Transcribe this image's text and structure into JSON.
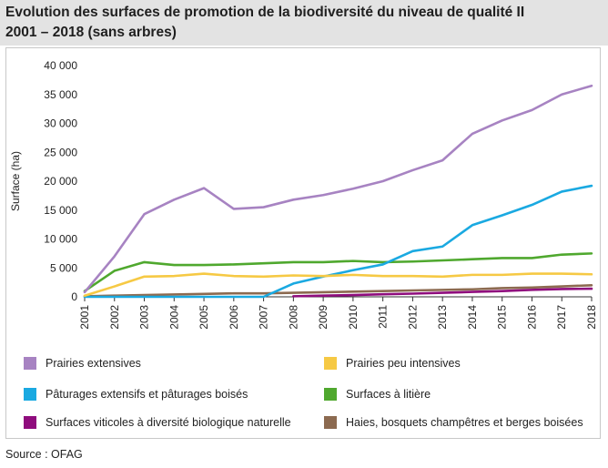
{
  "header": {
    "title_line1": "Evolution des surfaces de promotion de la biodiversité du niveau de qualité II",
    "title_line2": "2001 – 2018 (sans arbres)"
  },
  "source": "Source : OFAG",
  "chart_data": {
    "type": "line",
    "title": "Evolution des surfaces de promotion de la biodiversité du niveau de qualité II",
    "subtitle": "2001 – 2018 (sans arbres)",
    "xlabel": "",
    "ylabel": "Surface (ha)",
    "ylim": [
      0,
      40000
    ],
    "yticks": [
      0,
      5000,
      10000,
      15000,
      20000,
      25000,
      30000,
      35000,
      40000
    ],
    "ytick_labels": [
      "0",
      "5 000",
      "10 000",
      "15 000",
      "20 000",
      "25 000",
      "30 000",
      "35 000",
      "40 000"
    ],
    "x": [
      "2001",
      "2002",
      "2003",
      "2004",
      "2005",
      "2006",
      "2007",
      "2008",
      "2009",
      "2010",
      "2011",
      "2012",
      "2013",
      "2014",
      "2015",
      "2016",
      "2017",
      "2018"
    ],
    "grid": false,
    "legend_position": "bottom",
    "series": [
      {
        "name": "Prairies extensives",
        "color": "#a783c2",
        "values": [
          800,
          7000,
          14300,
          16800,
          18800,
          15200,
          15500,
          16800,
          17600,
          18700,
          20000,
          21900,
          23600,
          28200,
          30500,
          32300,
          35000,
          36500
        ]
      },
      {
        "name": "Prairies peu intensives",
        "color": "#f6c944",
        "values": [
          200,
          1800,
          3500,
          3600,
          4000,
          3600,
          3500,
          3700,
          3600,
          3800,
          3600,
          3600,
          3500,
          3800,
          3800,
          4000,
          4000,
          3900
        ]
      },
      {
        "name": "Pâturages extensifs et pâturages boisés",
        "color": "#1aa9e1",
        "values": [
          0,
          0,
          0,
          0,
          0,
          0,
          0,
          2300,
          3500,
          4600,
          5600,
          7900,
          8700,
          12400,
          14100,
          15900,
          18200,
          19200
        ]
      },
      {
        "name": "Surfaces à litière",
        "color": "#4fa82e",
        "values": [
          1000,
          4500,
          6000,
          5500,
          5500,
          5600,
          5800,
          6000,
          6000,
          6200,
          6000,
          6100,
          6300,
          6500,
          6700,
          6700,
          7300,
          7500
        ]
      },
      {
        "name": "Surfaces viticoles à diversité biologique naturelle",
        "color": "#8f0c7d",
        "values": [
          null,
          null,
          null,
          null,
          null,
          null,
          null,
          100,
          200,
          300,
          450,
          550,
          700,
          850,
          1000,
          1200,
          1350,
          1400
        ]
      },
      {
        "name": "Haies, bosquets champêtres et berges boisées",
        "color": "#8c6a50",
        "values": [
          100,
          200,
          300,
          400,
          500,
          600,
          600,
          700,
          800,
          900,
          1000,
          1100,
          1200,
          1300,
          1500,
          1600,
          1800,
          2000
        ]
      }
    ]
  }
}
